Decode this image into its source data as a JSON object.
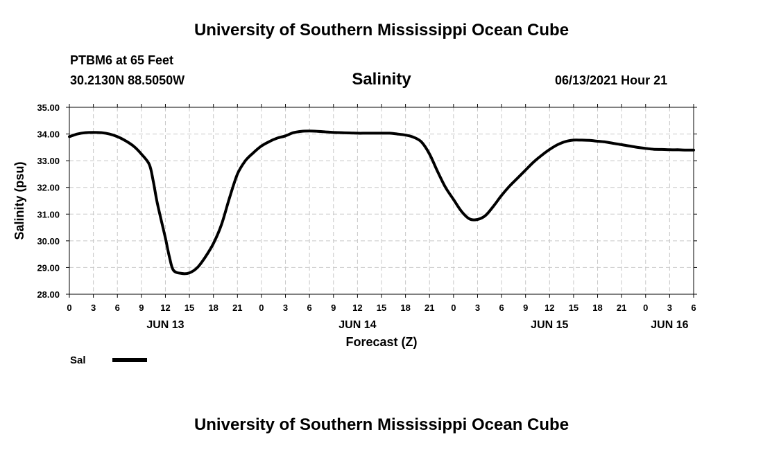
{
  "header": {
    "title": "University of Southern Mississippi Ocean Cube",
    "station": "PTBM6 at 65 Feet",
    "coords": "30.2130N  88.5050W",
    "issue": "06/13/2021 Hour 21"
  },
  "footer": {
    "title": "University of Southern Mississippi Ocean Cube"
  },
  "colors": {
    "line": "#000000",
    "grid": "#c8c8c8",
    "axis": "#000000"
  },
  "chart_data": {
    "type": "line",
    "title": "Salinity",
    "xlabel": "Forecast (Z)",
    "ylabel": "Salinity (psu)",
    "ylim": [
      28.0,
      35.0
    ],
    "xlim_hours": [
      0,
      78
    ],
    "grid": true,
    "legend_position": "bottom-left",
    "y_ticks": [
      "28.00",
      "29.00",
      "30.00",
      "31.00",
      "32.00",
      "33.00",
      "34.00",
      "35.00"
    ],
    "x_tick_hours": [
      0,
      3,
      6,
      9,
      12,
      15,
      18,
      21,
      24,
      27,
      30,
      33,
      36,
      39,
      42,
      45,
      48,
      51,
      54,
      57,
      60,
      63,
      66,
      69,
      72,
      75,
      78
    ],
    "x_tick_labels": [
      "0",
      "3",
      "6",
      "9",
      "12",
      "15",
      "18",
      "21",
      "0",
      "3",
      "6",
      "9",
      "12",
      "15",
      "18",
      "21",
      "0",
      "3",
      "6",
      "9",
      "12",
      "15",
      "18",
      "21",
      "0",
      "3",
      "6"
    ],
    "day_labels": [
      {
        "hour": 12,
        "label": "JUN 13"
      },
      {
        "hour": 36,
        "label": "JUN 14"
      },
      {
        "hour": 60,
        "label": "JUN 15"
      },
      {
        "hour": 75,
        "label": "JUN 16"
      }
    ],
    "series": [
      {
        "name": "Sal",
        "x": [
          0,
          1,
          2,
          3,
          4,
          5,
          6,
          7,
          8,
          9,
          10,
          10.5,
          11,
          12,
          12.5,
          13,
          14,
          15,
          16,
          17,
          18,
          19,
          20,
          21,
          22,
          23,
          24,
          25,
          26,
          27,
          28,
          29,
          30,
          31,
          32,
          33,
          34,
          35,
          36,
          37,
          38,
          39,
          40,
          41,
          42,
          43,
          44,
          45,
          46,
          47,
          48,
          49,
          50,
          51,
          52,
          53,
          54,
          55,
          56,
          57,
          58,
          59,
          60,
          61,
          62,
          63,
          64,
          65,
          66,
          67,
          68,
          69,
          70,
          71,
          72,
          73,
          74,
          75,
          76,
          77,
          78
        ],
        "values": [
          33.9,
          34.0,
          34.05,
          34.06,
          34.05,
          34.0,
          33.9,
          33.75,
          33.55,
          33.25,
          32.85,
          32.2,
          31.4,
          30.1,
          29.4,
          28.9,
          28.78,
          28.8,
          29.0,
          29.4,
          29.9,
          30.6,
          31.6,
          32.5,
          33.0,
          33.3,
          33.55,
          33.72,
          33.85,
          33.93,
          34.05,
          34.1,
          34.11,
          34.1,
          34.08,
          34.06,
          34.05,
          34.04,
          34.03,
          34.03,
          34.03,
          34.03,
          34.03,
          34.0,
          33.96,
          33.88,
          33.7,
          33.25,
          32.6,
          32.0,
          31.55,
          31.1,
          30.82,
          30.8,
          30.95,
          31.3,
          31.7,
          32.05,
          32.35,
          32.65,
          32.95,
          33.2,
          33.42,
          33.6,
          33.72,
          33.77,
          33.77,
          33.76,
          33.73,
          33.7,
          33.65,
          33.6,
          33.55,
          33.5,
          33.46,
          33.43,
          33.42,
          33.41,
          33.41,
          33.4,
          33.4
        ]
      }
    ]
  }
}
